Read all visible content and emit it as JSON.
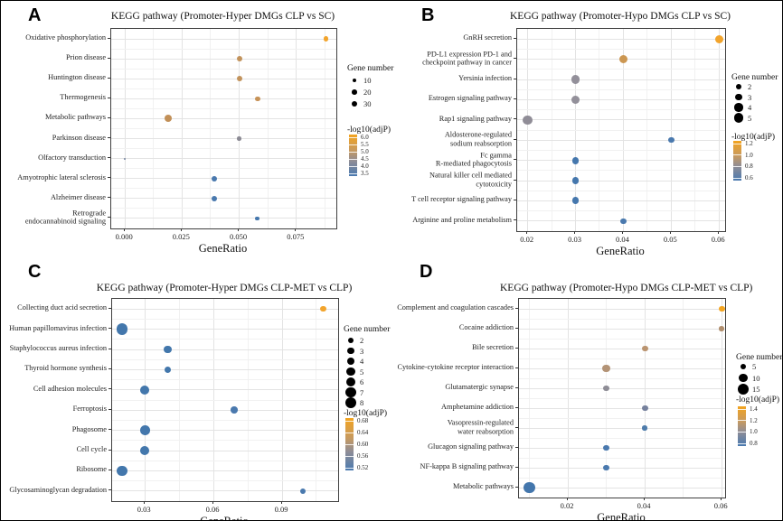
{
  "chart_data": [
    {
      "type": "scatter",
      "panel_label": "A",
      "title": "KEGG pathway (Promoter-Hyper DMGs CLP vs SC)",
      "xlabel": "GeneRatio",
      "grid": true,
      "legend_position": "right",
      "xlim": [
        -0.006,
        0.0925
      ],
      "x_ticks": [
        0.0,
        0.025,
        0.05,
        0.075
      ],
      "x_tick_labels": [
        "0.000",
        "0.025",
        "0.050",
        "0.075"
      ],
      "points": [
        {
          "pathway": "Oxidative phosphorylation",
          "gene_ratio": 0.088,
          "gene_number": 18,
          "neg_log10_adjp": 6.0,
          "color": "#f2a42c"
        },
        {
          "pathway": "Prion disease",
          "gene_ratio": 0.05,
          "gene_number": 22,
          "neg_log10_adjp": 5.2,
          "color": "#c2935c"
        },
        {
          "pathway": "Huntington disease",
          "gene_ratio": 0.05,
          "gene_number": 22,
          "neg_log10_adjp": 5.2,
          "color": "#c2935c"
        },
        {
          "pathway": "Thermogenesis",
          "gene_ratio": 0.058,
          "gene_number": 20,
          "neg_log10_adjp": 5.3,
          "color": "#c69257"
        },
        {
          "pathway": "Metabolic pathways",
          "gene_ratio": 0.019,
          "gene_number": 40,
          "neg_log10_adjp": 5.2,
          "color": "#c29058"
        },
        {
          "pathway": "Parkinson disease",
          "gene_ratio": 0.05,
          "gene_number": 13,
          "neg_log10_adjp": 4.2,
          "color": "#8b8a94"
        },
        {
          "pathway": "Olfactory transduction",
          "gene_ratio": 0.0,
          "gene_number": 2,
          "neg_log10_adjp": 3.8,
          "color": "#7b89a4"
        },
        {
          "pathway": "Amyotrophic lateral sclerosis",
          "gene_ratio": 0.039,
          "gene_number": 22,
          "neg_log10_adjp": 3.6,
          "color": "#4a79ae"
        },
        {
          "pathway": "Alzheimer disease",
          "gene_ratio": 0.039,
          "gene_number": 22,
          "neg_log10_adjp": 3.6,
          "color": "#4a79ae"
        },
        {
          "pathway": "Retrograde\nendocannabinoid signaling",
          "gene_ratio": 0.058,
          "gene_number": 14,
          "neg_log10_adjp": 3.6,
          "color": "#4577ad"
        }
      ],
      "legend": {
        "size_title": "Gene number",
        "size_numbers": [
          10,
          20,
          30
        ],
        "size_labels": [
          "10",
          "20",
          "30"
        ],
        "color_title": "-log10(adjP)",
        "color_tick_labels": [
          "6.0",
          "5.5",
          "5.0",
          "4.5",
          "4.0",
          "3.5"
        ],
        "color_top_hex": "#f3a41f",
        "color_mid_hex": [
          "#c79a60",
          "#8f8d96"
        ],
        "color_bottom_hex": "#4a7ab0"
      }
    },
    {
      "type": "scatter",
      "panel_label": "B",
      "title": "KEGG pathway (Promoter-Hypo DMGs CLP vs SC)",
      "xlabel": "GeneRatio",
      "grid": true,
      "legend_position": "right",
      "xlim": [
        0.0178,
        0.0613
      ],
      "x_ticks": [
        0.02,
        0.03,
        0.04,
        0.05,
        0.06
      ],
      "x_tick_labels": [
        "0.02",
        "0.03",
        "0.04",
        "0.05",
        "0.06"
      ],
      "points": [
        {
          "pathway": "GnRH secretion",
          "gene_ratio": 0.06,
          "gene_number": 4,
          "neg_log10_adjp": 1.25,
          "color": "#f2a42c"
        },
        {
          "pathway": "PD-L1 expression PD-1 and\ncheckpoint pathway in cancer",
          "gene_ratio": 0.04,
          "gene_number": 4,
          "neg_log10_adjp": 1.05,
          "color": "#cc9752"
        },
        {
          "pathway": "Yersinia infection",
          "gene_ratio": 0.03,
          "gene_number": 4,
          "neg_log10_adjp": 0.85,
          "color": "#93909a"
        },
        {
          "pathway": "Estrogen signaling pathway",
          "gene_ratio": 0.03,
          "gene_number": 4,
          "neg_log10_adjp": 0.85,
          "color": "#93909a"
        },
        {
          "pathway": "Rap1 signaling pathway",
          "gene_ratio": 0.02,
          "gene_number": 5,
          "neg_log10_adjp": 0.85,
          "color": "#908d97"
        },
        {
          "pathway": "Aldosterone-regulated\nsodium reabsorption",
          "gene_ratio": 0.05,
          "gene_number": 2,
          "neg_log10_adjp": 0.6,
          "color": "#4a79ae"
        },
        {
          "pathway": "Fc gamma\nR-mediated phagocytosis",
          "gene_ratio": 0.03,
          "gene_number": 3,
          "neg_log10_adjp": 0.62,
          "color": "#4577ad"
        },
        {
          "pathway": "Natural killer cell mediated cytotoxicity",
          "gene_ratio": 0.03,
          "gene_number": 3,
          "neg_log10_adjp": 0.62,
          "color": "#4577ad"
        },
        {
          "pathway": "T cell receptor signaling pathway",
          "gene_ratio": 0.03,
          "gene_number": 3,
          "neg_log10_adjp": 0.62,
          "color": "#4577ad"
        },
        {
          "pathway": "Arginine and proline metabolism",
          "gene_ratio": 0.04,
          "gene_number": 2,
          "neg_log10_adjp": 0.6,
          "color": "#4a79ae"
        }
      ],
      "legend": {
        "size_title": "Gene number",
        "size_numbers": [
          2,
          3,
          4,
          5
        ],
        "size_labels": [
          "2",
          "3",
          "4",
          "5"
        ],
        "color_title": "-log10(adjP)",
        "color_tick_labels": [
          "1.2",
          "1.0",
          "0.8",
          "0.6"
        ],
        "color_top_hex": "#f3a41f",
        "color_mid_hex": [
          "#c79a60",
          "#8f8d96"
        ],
        "color_bottom_hex": "#4a7ab0"
      }
    },
    {
      "type": "scatter",
      "panel_label": "C",
      "title": "KEGG pathway (Promoter-Hyper DMGs CLP-MET vs CLP)",
      "xlabel": "GeneRatio",
      "grid": true,
      "legend_position": "right",
      "xlim": [
        0.0157,
        0.1145
      ],
      "x_ticks": [
        0.03,
        0.06,
        0.09
      ],
      "x_tick_labels": [
        "0.03",
        "0.06",
        "0.09"
      ],
      "points": [
        {
          "pathway": "Collecting duct acid secretion",
          "gene_ratio": 0.108,
          "gene_number": 2,
          "neg_log10_adjp": 0.68,
          "color": "#f2a42c"
        },
        {
          "pathway": "Human papillomavirus infection",
          "gene_ratio": 0.02,
          "gene_number": 8,
          "neg_log10_adjp": 0.53,
          "color": "#4377ac"
        },
        {
          "pathway": "Staphylococcus aureus infection",
          "gene_ratio": 0.04,
          "gene_number": 4,
          "neg_log10_adjp": 0.53,
          "color": "#4377ac"
        },
        {
          "pathway": "Thyroid hormone synthesis",
          "gene_ratio": 0.04,
          "gene_number": 3,
          "neg_log10_adjp": 0.53,
          "color": "#4377ac"
        },
        {
          "pathway": "Cell adhesion molecules",
          "gene_ratio": 0.03,
          "gene_number": 5,
          "neg_log10_adjp": 0.53,
          "color": "#4377ac"
        },
        {
          "pathway": "Ferroptosis",
          "gene_ratio": 0.069,
          "gene_number": 3,
          "neg_log10_adjp": 0.54,
          "color": "#4a79ae"
        },
        {
          "pathway": "Phagosome",
          "gene_ratio": 0.03,
          "gene_number": 6,
          "neg_log10_adjp": 0.53,
          "color": "#4377ac"
        },
        {
          "pathway": "Cell cycle",
          "gene_ratio": 0.03,
          "gene_number": 5,
          "neg_log10_adjp": 0.53,
          "color": "#4377ac"
        },
        {
          "pathway": "Ribosome",
          "gene_ratio": 0.02,
          "gene_number": 7,
          "neg_log10_adjp": 0.52,
          "color": "#4377ac"
        },
        {
          "pathway": "Glycosaminoglycan degradation",
          "gene_ratio": 0.099,
          "gene_number": 2,
          "neg_log10_adjp": 0.54,
          "color": "#4a79ae"
        }
      ],
      "legend": {
        "size_title": "Gene number",
        "size_numbers": [
          2,
          3,
          4,
          5,
          6,
          7,
          8
        ],
        "size_labels": [
          "2",
          "3",
          "4",
          "5",
          "6",
          "7",
          "8"
        ],
        "color_title": "-log10(adjP)",
        "color_tick_labels": [
          "0.68",
          "0.64",
          "0.60",
          "0.56",
          "0.52"
        ],
        "color_top_hex": "#f3a41f",
        "color_mid_hex": [
          "#c79a60",
          "#8f8d96"
        ],
        "color_bottom_hex": "#4a7ab0"
      }
    },
    {
      "type": "scatter",
      "panel_label": "D",
      "title": "KEGG pathway (Promoter-Hypo DMGs CLP-MET vs CLP)",
      "xlabel": "GeneRatio",
      "grid": true,
      "legend_position": "right",
      "xlim": [
        0.0073,
        0.0609
      ],
      "x_ticks": [
        0.02,
        0.04,
        0.06
      ],
      "x_tick_labels": [
        "0.02",
        "0.04",
        "0.06"
      ],
      "points": [
        {
          "pathway": "Complement and coagulation cascades",
          "gene_ratio": 0.06,
          "gene_number": 5,
          "neg_log10_adjp": 1.4,
          "color": "#f4a520"
        },
        {
          "pathway": "Cocaine addiction",
          "gene_ratio": 0.06,
          "gene_number": 3,
          "neg_log10_adjp": 1.05,
          "color": "#b18f6e"
        },
        {
          "pathway": "Bile secretion",
          "gene_ratio": 0.04,
          "gene_number": 5,
          "neg_log10_adjp": 1.05,
          "color": "#ba9470"
        },
        {
          "pathway": "Cytokine-cytokine receptor interaction",
          "gene_ratio": 0.03,
          "gene_number": 8,
          "neg_log10_adjp": 1.0,
          "color": "#b39376"
        },
        {
          "pathway": "Glutamatergic synapse",
          "gene_ratio": 0.03,
          "gene_number": 5,
          "neg_log10_adjp": 0.9,
          "color": "#8e8d96"
        },
        {
          "pathway": "Amphetamine addiction",
          "gene_ratio": 0.04,
          "gene_number": 5,
          "neg_log10_adjp": 0.8,
          "color": "#76819d"
        },
        {
          "pathway": "Vasopressin-regulated\nwater reabsorption",
          "gene_ratio": 0.04,
          "gene_number": 3,
          "neg_log10_adjp": 0.72,
          "color": "#4e7cab"
        },
        {
          "pathway": "Glucagon signaling pathway",
          "gene_ratio": 0.03,
          "gene_number": 4,
          "neg_log10_adjp": 0.72,
          "color": "#4a79ae"
        },
        {
          "pathway": "NF-kappa B signaling pathway",
          "gene_ratio": 0.03,
          "gene_number": 4,
          "neg_log10_adjp": 0.72,
          "color": "#4a79ae"
        },
        {
          "pathway": "Metabolic pathways",
          "gene_ratio": 0.01,
          "gene_number": 16,
          "neg_log10_adjp": 0.7,
          "color": "#4376ac"
        }
      ],
      "legend": {
        "size_title": "Gene number",
        "size_numbers": [
          5,
          10,
          15
        ],
        "size_labels": [
          "5",
          "10",
          "15"
        ],
        "color_title": "-log10(adjP)",
        "color_tick_labels": [
          "1.4",
          "1.2",
          "1.0",
          "0.8"
        ],
        "color_top_hex": "#f3a41f",
        "color_mid_hex": [
          "#c79a60",
          "#8f8d96"
        ],
        "color_bottom_hex": "#4a7ab0"
      }
    }
  ]
}
